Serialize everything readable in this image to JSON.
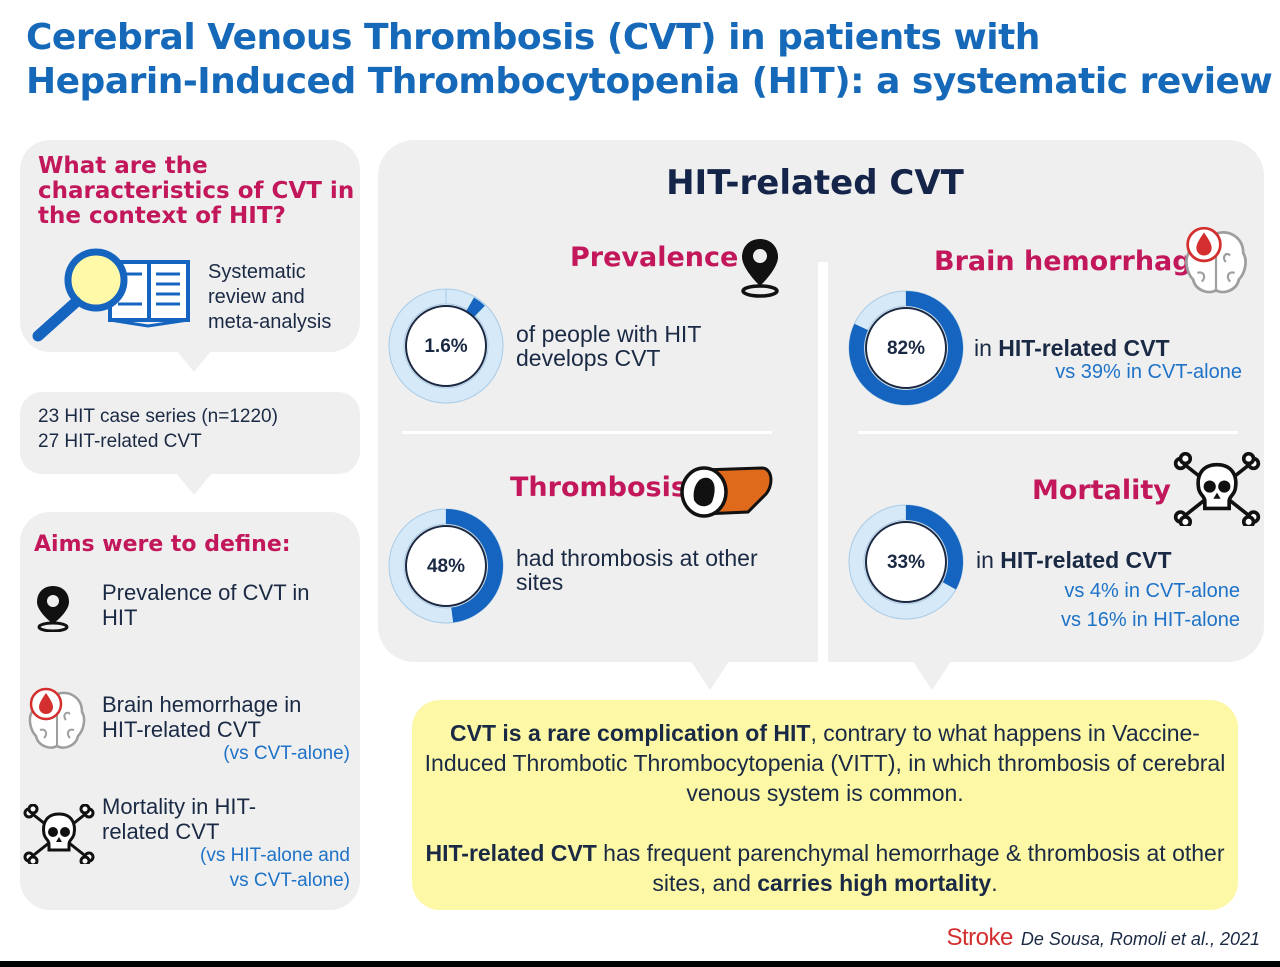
{
  "title": {
    "line1": "Cerebral Venous Thrombosis (CVT) in patients with",
    "line2": "Heparin-Induced Thrombocytopenia (HIT): a systematic review"
  },
  "left": {
    "question": "What are the characteristics of CVT in the context of HIT?",
    "method_lines": [
      "Systematic",
      "review and",
      "meta-analysis"
    ],
    "cases_lines": [
      "23 HIT case series (n=1220)",
      "27 HIT-related CVT"
    ],
    "aims_title": "Aims were to define:",
    "aims": [
      {
        "lines": [
          "Prevalence of CVT in",
          "HIT"
        ],
        "note": ""
      },
      {
        "lines": [
          "Brain hemorrhage in",
          "HIT-related CVT"
        ],
        "note": "(vs CVT-alone)"
      },
      {
        "lines": [
          "Mortality in HIT-",
          "related CVT"
        ],
        "note_lines": [
          "(vs HIT-alone and",
          "vs CVT-alone)"
        ]
      }
    ]
  },
  "main": {
    "title": "HIT-related CVT",
    "prevalence": {
      "title": "Prevalence",
      "value": 1.6,
      "label": "1.6%",
      "text_lines": [
        "of people with HIT",
        "develops CVT"
      ]
    },
    "thrombosis": {
      "title": "Thrombosis",
      "value": 48,
      "label": "48%",
      "text_lines": [
        "had thrombosis at other",
        "sites"
      ]
    },
    "hemorrhage": {
      "title": "Brain hemorrhage",
      "value": 82,
      "label": "82%",
      "text_pre": "in ",
      "text_bold": "HIT-related CVT",
      "notes": [
        "vs 39% in CVT-alone"
      ]
    },
    "mortality": {
      "title": "Mortality",
      "value": 33,
      "label": "33%",
      "text_pre": "in ",
      "text_bold": "HIT-related CVT",
      "notes": [
        "vs 4% in CVT-alone",
        "vs 16% in HIT-alone"
      ]
    }
  },
  "summary": {
    "p1_bold": "CVT is a rare complication of HIT",
    "p1_rest": ", contrary to what happens in Vaccine-Induced Thrombotic Thrombocytopenia (VITT), in which thrombosis of cerebral venous system is common.",
    "p2_bold1": "HIT-related CVT",
    "p2_mid": " has frequent parenchymal hemorrhage & thrombosis at other sites, and ",
    "p2_bold2": "carries high mortality",
    "p2_end": "."
  },
  "credit": {
    "journal": "Stroke",
    "authors": "De Sousa, Romoli et al., 2021"
  },
  "colors": {
    "title_blue": "#1569b8",
    "accent_magenta": "#c2185b",
    "donut_dark": "#1565c0",
    "donut_light": "#d6e9f8",
    "summary_bg": "#fcf8a6",
    "panel_bg": "#efefef"
  }
}
